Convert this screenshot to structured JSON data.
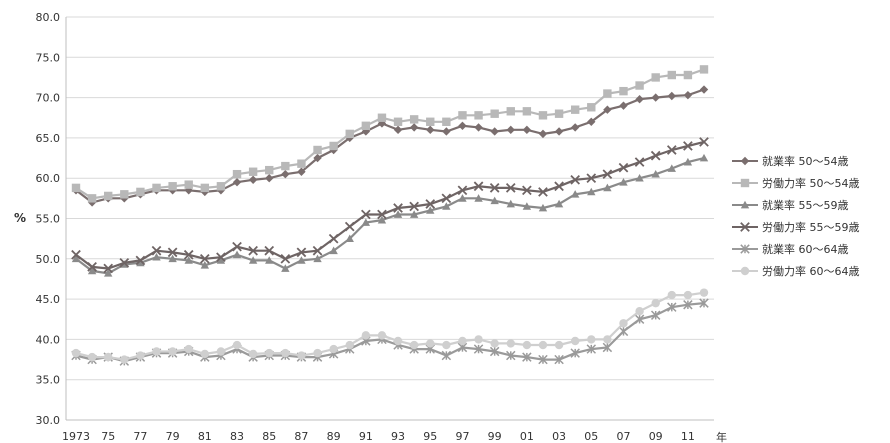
{
  "chart_data": {
    "type": "line",
    "ylabel": "%",
    "year_unit": "年",
    "ylim": [
      30.0,
      80.0
    ],
    "y_ticks": [
      "30.0",
      "35.0",
      "40.0",
      "45.0",
      "50.0",
      "55.0",
      "60.0",
      "65.0",
      "70.0",
      "75.0",
      "80.0"
    ],
    "x_ticks": [
      "1973",
      "75",
      "77",
      "79",
      "81",
      "83",
      "85",
      "87",
      "89",
      "91",
      "93",
      "95",
      "97",
      "99",
      "01",
      "03",
      "05",
      "07",
      "09",
      "11"
    ],
    "x": [
      1973,
      1974,
      1975,
      1976,
      1977,
      1978,
      1979,
      1980,
      1981,
      1982,
      1983,
      1984,
      1985,
      1986,
      1987,
      1988,
      1989,
      1990,
      1991,
      1992,
      1993,
      1994,
      1995,
      1996,
      1997,
      1998,
      1999,
      2000,
      2001,
      2002,
      2003,
      2004,
      2005,
      2006,
      2007,
      2008,
      2009,
      2010,
      2011,
      2012
    ],
    "grid": "horizontal",
    "legend_position": "right",
    "series": [
      {
        "name": "就業率 50〜54歳",
        "color": "#7a6e6e",
        "marker": "diamond",
        "values": [
          58.5,
          57.0,
          57.5,
          57.5,
          58.0,
          58.5,
          58.5,
          58.5,
          58.3,
          58.5,
          59.5,
          59.8,
          60.0,
          60.5,
          60.8,
          62.5,
          63.5,
          65.0,
          65.8,
          66.8,
          66.0,
          66.3,
          66.0,
          65.8,
          66.5,
          66.3,
          65.8,
          66.0,
          66.0,
          65.5,
          65.8,
          66.3,
          67.0,
          68.5,
          69.0,
          69.8,
          70.0,
          70.2,
          70.3,
          71.0
        ]
      },
      {
        "name": "労働力率 50〜54歳",
        "color": "#b8b8b8",
        "marker": "square",
        "values": [
          58.8,
          57.5,
          57.8,
          58.0,
          58.3,
          58.8,
          59.0,
          59.2,
          58.8,
          59.0,
          60.5,
          60.8,
          61.0,
          61.5,
          61.8,
          63.5,
          64.0,
          65.5,
          66.5,
          67.5,
          67.0,
          67.3,
          67.0,
          67.0,
          67.8,
          67.8,
          68.0,
          68.3,
          68.3,
          67.8,
          68.0,
          68.5,
          68.8,
          70.5,
          70.8,
          71.5,
          72.5,
          72.8,
          72.8,
          73.5
        ]
      },
      {
        "name": "就業率 55〜59歳",
        "color": "#8a8a8a",
        "marker": "triangle",
        "values": [
          50.0,
          48.5,
          48.2,
          49.3,
          49.5,
          50.2,
          50.0,
          49.8,
          49.2,
          49.8,
          50.5,
          49.8,
          49.8,
          48.8,
          49.8,
          50.0,
          51.0,
          52.5,
          54.5,
          54.8,
          55.5,
          55.5,
          56.0,
          56.5,
          57.5,
          57.5,
          57.2,
          56.8,
          56.5,
          56.3,
          56.8,
          58.0,
          58.3,
          58.8,
          59.5,
          60.0,
          60.5,
          61.2,
          62.0,
          62.5
        ]
      },
      {
        "name": "労働力率 55〜59歳",
        "color": "#6e6464",
        "marker": "x",
        "values": [
          50.5,
          49.0,
          48.8,
          49.5,
          49.8,
          51.0,
          50.8,
          50.5,
          50.0,
          50.2,
          51.5,
          51.0,
          51.0,
          50.0,
          50.8,
          51.0,
          52.5,
          54.0,
          55.5,
          55.5,
          56.3,
          56.5,
          56.8,
          57.5,
          58.5,
          59.0,
          58.8,
          58.8,
          58.5,
          58.3,
          59.0,
          59.8,
          60.0,
          60.5,
          61.3,
          62.0,
          62.8,
          63.5,
          64.0,
          64.5
        ]
      },
      {
        "name": "就業率 60〜64歳",
        "color": "#9a9a9a",
        "marker": "asterisk",
        "values": [
          38.0,
          37.5,
          37.8,
          37.3,
          37.8,
          38.3,
          38.3,
          38.5,
          37.8,
          38.0,
          38.8,
          37.8,
          38.0,
          38.0,
          37.8,
          37.8,
          38.2,
          38.8,
          39.8,
          40.0,
          39.3,
          38.8,
          38.8,
          38.0,
          39.0,
          38.8,
          38.5,
          38.0,
          37.8,
          37.5,
          37.5,
          38.3,
          38.8,
          39.0,
          41.0,
          42.5,
          43.0,
          44.0,
          44.3,
          44.5
        ]
      },
      {
        "name": "労働力率 60〜64歳",
        "color": "#cfcfcf",
        "marker": "circle",
        "values": [
          38.3,
          37.8,
          37.8,
          37.5,
          38.0,
          38.5,
          38.5,
          38.8,
          38.2,
          38.5,
          39.3,
          38.2,
          38.3,
          38.3,
          38.0,
          38.3,
          38.8,
          39.3,
          40.5,
          40.5,
          39.8,
          39.3,
          39.5,
          39.3,
          39.8,
          40.0,
          39.5,
          39.5,
          39.3,
          39.3,
          39.3,
          39.8,
          40.0,
          40.0,
          42.0,
          43.5,
          44.5,
          45.5,
          45.5,
          45.8
        ]
      }
    ]
  }
}
